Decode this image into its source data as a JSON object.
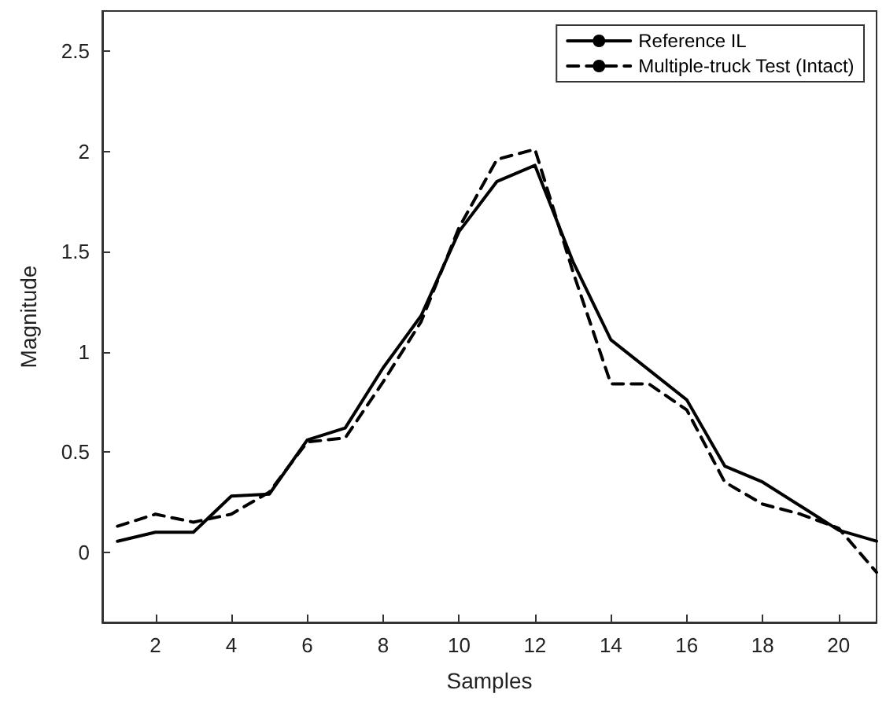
{
  "chart_data": {
    "type": "line",
    "xlabel": "Samples",
    "ylabel": "Magnitude",
    "x": [
      1,
      2,
      3,
      4,
      5,
      6,
      7,
      8,
      9,
      10,
      11,
      12,
      13,
      14,
      15,
      16,
      17,
      18,
      19,
      20,
      21
    ],
    "series": [
      {
        "name": "Reference IL",
        "color": "#000000",
        "line_style": "solid",
        "values": [
          0.055,
          0.1,
          0.1,
          0.28,
          0.29,
          0.56,
          0.62,
          0.92,
          1.18,
          1.6,
          1.85,
          1.93,
          1.45,
          1.06,
          0.91,
          0.76,
          0.43,
          0.35,
          0.23,
          0.11,
          0.055
        ]
      },
      {
        "name": "Multiple-truck Test (Intact)",
        "color": "#000000",
        "line_style": "dashed",
        "values": [
          0.13,
          0.19,
          0.15,
          0.19,
          0.3,
          0.55,
          0.57,
          0.85,
          1.15,
          1.62,
          1.96,
          2.01,
          1.4,
          0.84,
          0.84,
          0.71,
          0.35,
          0.24,
          0.19,
          0.12,
          -0.1
        ]
      }
    ],
    "xlim": [
      0.6,
      21
    ],
    "xticks": [
      2,
      4,
      6,
      8,
      10,
      12,
      14,
      16,
      18,
      20
    ],
    "ylim": [
      -0.35,
      2.7
    ],
    "yticks": [
      0,
      0.5,
      1,
      1.5,
      2,
      2.5
    ],
    "grid": false,
    "legend": "top right",
    "marker": "none"
  }
}
